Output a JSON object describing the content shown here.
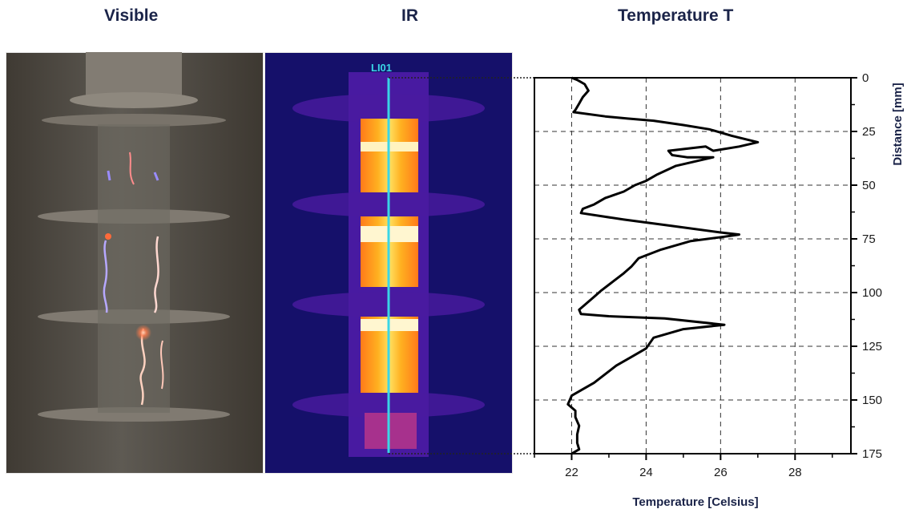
{
  "titles": {
    "visible": "Visible",
    "ir": "IR",
    "temperature": "Temperature T"
  },
  "ir_line_label": "LI01",
  "colors": {
    "title": "#1a2348",
    "ir_line": "#39d6e6",
    "curve": "#000000"
  },
  "chart_data": {
    "type": "line",
    "title": "Temperature T",
    "xlabel": "Temperature [Celsius]",
    "ylabel": "Distance [mm]",
    "xlim": [
      21,
      29.5
    ],
    "ylim": [
      0,
      175
    ],
    "y_inverted": true,
    "x_ticks": [
      22,
      24,
      26,
      28
    ],
    "y_ticks": [
      0,
      25,
      50,
      75,
      100,
      125,
      150,
      175
    ],
    "grid": true,
    "series": [
      {
        "x": [
          22.0,
          22.15,
          22.35,
          22.45,
          22.3,
          22.2,
          22.1,
          22.05,
          22.9,
          23.5,
          24.2,
          25.0,
          25.7,
          26.3,
          27.0,
          26.5,
          25.8,
          25.6,
          24.6,
          24.7,
          25.1,
          25.8,
          24.8,
          24.3,
          24.0,
          23.7,
          23.4,
          22.9,
          22.6,
          22.3,
          22.25,
          23.4,
          24.7,
          26.0,
          26.5,
          26.1,
          25.2,
          24.4,
          23.8,
          23.6,
          23.4,
          23.1,
          22.8,
          22.6,
          22.4,
          22.2,
          22.25,
          23.0,
          24.5,
          26.1,
          25.0,
          24.2,
          24.0,
          23.6,
          23.2,
          22.9,
          22.6,
          22.3,
          22.0,
          21.9,
          22.1,
          22.1,
          22.2,
          22.15,
          22.15,
          22.2,
          22.0
        ],
        "y": [
          0,
          1,
          3,
          6,
          9,
          12,
          15,
          16,
          18,
          19,
          20,
          22,
          24,
          27,
          30,
          32,
          34,
          32,
          34,
          36,
          37,
          37,
          41,
          45,
          48,
          50,
          53,
          56,
          59,
          61,
          63,
          66,
          69,
          72,
          73,
          74,
          76,
          80,
          84,
          88,
          91,
          95,
          99,
          102,
          105,
          108,
          110,
          111,
          112,
          115,
          117,
          121,
          126,
          130,
          134,
          138,
          142,
          145,
          148,
          152,
          155,
          158,
          162,
          166,
          170,
          173,
          175
        ]
      }
    ]
  }
}
